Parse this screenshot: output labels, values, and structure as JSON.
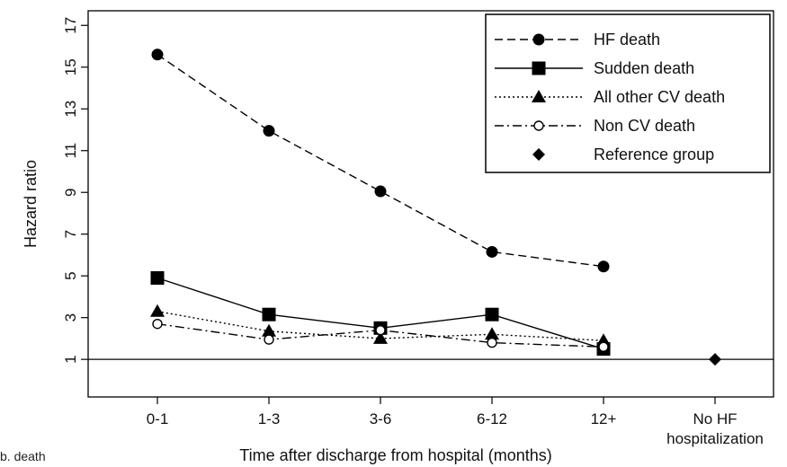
{
  "chart_data": {
    "type": "line",
    "ylabel": "Hazard ratio",
    "xlabel": "Time after discharge from hospital (months)",
    "categories": [
      "0-1",
      "1-3",
      "3-6",
      "6-12",
      "12+",
      "No HF\nhospitalization"
    ],
    "ylim": [
      -0.8,
      17.7
    ],
    "yticks": [
      1,
      3,
      5,
      7,
      9,
      11,
      13,
      15,
      17
    ],
    "reference_line": 1,
    "grid": false,
    "legend_position": "top-right",
    "series": [
      {
        "name": "HF death",
        "marker": "circle",
        "line": "dashed",
        "values": [
          15.6,
          11.95,
          9.05,
          6.15,
          5.45,
          null
        ]
      },
      {
        "name": "Sudden death",
        "marker": "square",
        "line": "solid",
        "values": [
          4.9,
          3.15,
          2.5,
          3.15,
          1.5,
          null
        ]
      },
      {
        "name": "All other CV death",
        "marker": "triangle",
        "line": "dotted",
        "values": [
          3.3,
          2.35,
          2.0,
          2.2,
          1.9,
          null
        ]
      },
      {
        "name": "Non CV death",
        "marker": "open-circle",
        "line": "dashdot",
        "values": [
          2.7,
          1.95,
          2.4,
          1.8,
          1.6,
          null
        ]
      },
      {
        "name": "Reference group",
        "marker": "diamond",
        "line": "none",
        "values": [
          null,
          null,
          null,
          null,
          null,
          1
        ]
      }
    ]
  },
  "cut_text": "b. death"
}
